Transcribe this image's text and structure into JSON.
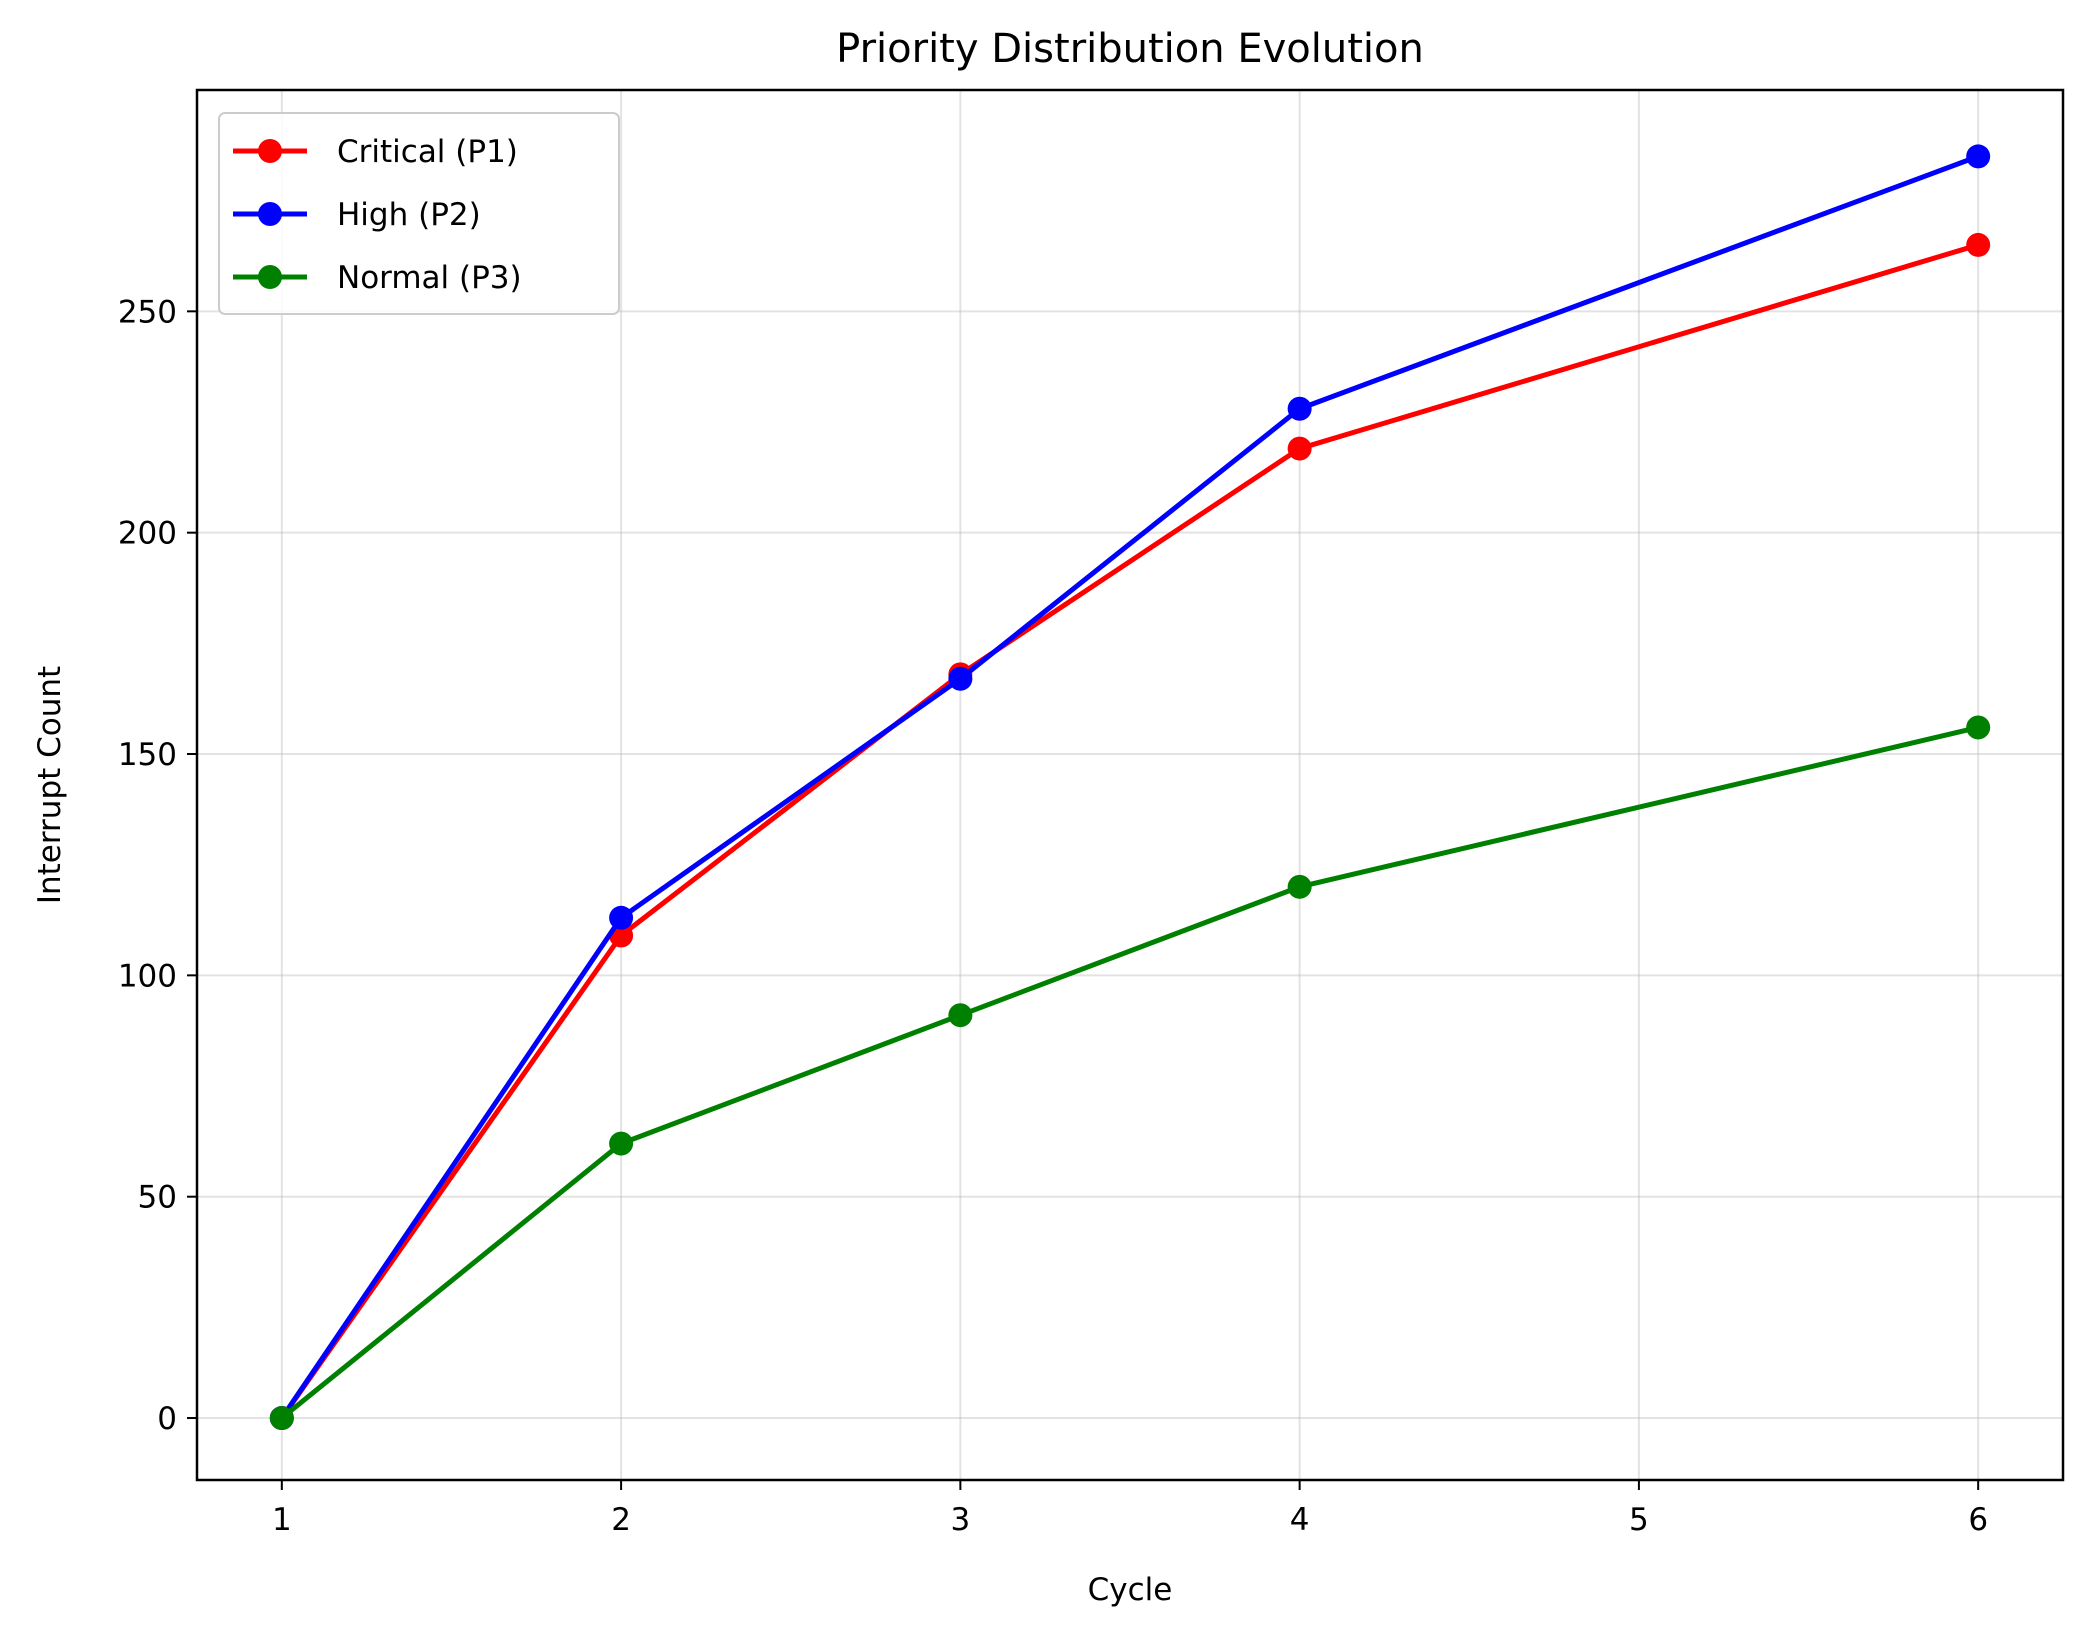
{
  "chart_data": {
    "type": "line",
    "title": "Priority Distribution Evolution",
    "xlabel": "Cycle",
    "ylabel": "Interrupt Count",
    "x": [
      1,
      2,
      3,
      4,
      6
    ],
    "xticks": [
      1,
      2,
      3,
      4,
      5,
      6
    ],
    "yticks": [
      0,
      50,
      100,
      150,
      200,
      250
    ],
    "xlim": [
      0.75,
      6.25
    ],
    "ylim": [
      -14,
      300
    ],
    "grid": true,
    "legend_position": "top-left",
    "series": [
      {
        "name": "Critical (P1)",
        "color": "#ff0000",
        "values": [
          0,
          109,
          168,
          219,
          265
        ]
      },
      {
        "name": "High (P2)",
        "color": "#0000ff",
        "values": [
          0,
          113,
          167,
          228,
          285
        ]
      },
      {
        "name": "Normal (P3)",
        "color": "#008000",
        "values": [
          0,
          62,
          91,
          120,
          156
        ]
      }
    ]
  }
}
